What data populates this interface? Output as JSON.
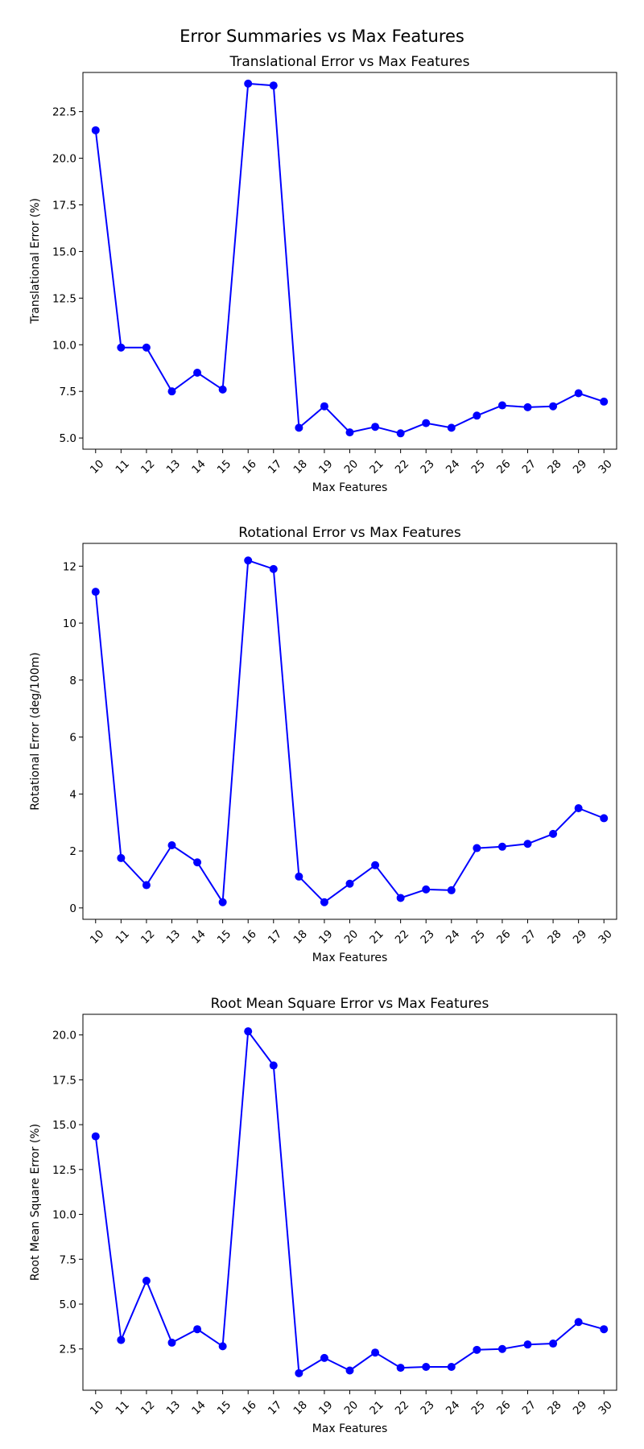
{
  "figure": {
    "title": "Error Summaries vs Max Features"
  },
  "chart_data": [
    {
      "type": "line",
      "title": "Translational Error vs Max Features",
      "xlabel": "Max Features",
      "ylabel": "Translational Error (%)",
      "x": [
        "10",
        "11",
        "12",
        "13",
        "14",
        "15",
        "16",
        "17",
        "18",
        "19",
        "20",
        "21",
        "22",
        "23",
        "24",
        "25",
        "26",
        "27",
        "28",
        "29",
        "30"
      ],
      "values": [
        21.5,
        9.85,
        9.85,
        7.5,
        8.5,
        7.6,
        24.0,
        23.9,
        5.55,
        6.7,
        5.3,
        5.6,
        5.25,
        5.8,
        5.55,
        6.2,
        6.75,
        6.65,
        6.7,
        7.4,
        6.95
      ],
      "ylim": [
        4.4,
        24.6
      ],
      "yticks": [
        5.0,
        7.5,
        10.0,
        12.5,
        15.0,
        17.5,
        20.0,
        22.5
      ],
      "ytick_labels": [
        "5.0",
        "7.5",
        "10.0",
        "12.5",
        "15.0",
        "17.5",
        "20.0",
        "22.5"
      ],
      "color": "#0000ff",
      "grid": false
    },
    {
      "type": "line",
      "title": "Rotational Error vs Max Features",
      "xlabel": "Max Features",
      "ylabel": "Rotational Error (deg/100m)",
      "x": [
        "10",
        "11",
        "12",
        "13",
        "14",
        "15",
        "16",
        "17",
        "18",
        "19",
        "20",
        "21",
        "22",
        "23",
        "24",
        "25",
        "26",
        "27",
        "28",
        "29",
        "30"
      ],
      "values": [
        11.1,
        1.75,
        0.8,
        2.2,
        1.6,
        0.2,
        12.2,
        11.9,
        1.1,
        0.2,
        0.85,
        1.5,
        0.35,
        0.65,
        0.62,
        2.1,
        2.15,
        2.25,
        2.6,
        3.5,
        3.15
      ],
      "ylim": [
        -0.4,
        12.8
      ],
      "yticks": [
        0,
        2,
        4,
        6,
        8,
        10,
        12
      ],
      "ytick_labels": [
        "0",
        "2",
        "4",
        "6",
        "8",
        "10",
        "12"
      ],
      "color": "#0000ff",
      "grid": false
    },
    {
      "type": "line",
      "title": "Root Mean Square Error vs Max Features",
      "xlabel": "Max Features",
      "ylabel": "Root Mean Square Error (%)",
      "x": [
        "10",
        "11",
        "12",
        "13",
        "14",
        "15",
        "16",
        "17",
        "18",
        "19",
        "20",
        "21",
        "22",
        "23",
        "24",
        "25",
        "26",
        "27",
        "28",
        "29",
        "30"
      ],
      "values": [
        14.35,
        3.0,
        6.3,
        2.85,
        3.6,
        2.65,
        20.2,
        18.3,
        1.15,
        2.0,
        1.3,
        2.3,
        1.45,
        1.5,
        1.5,
        2.45,
        2.5,
        2.75,
        2.8,
        4.0,
        3.6
      ],
      "ylim": [
        0.2,
        21.15
      ],
      "yticks": [
        2.5,
        5.0,
        7.5,
        10.0,
        12.5,
        15.0,
        17.5,
        20.0
      ],
      "ytick_labels": [
        "2.5",
        "5.0",
        "7.5",
        "10.0",
        "12.5",
        "15.0",
        "17.5",
        "20.0"
      ],
      "color": "#0000ff",
      "grid": false
    }
  ]
}
